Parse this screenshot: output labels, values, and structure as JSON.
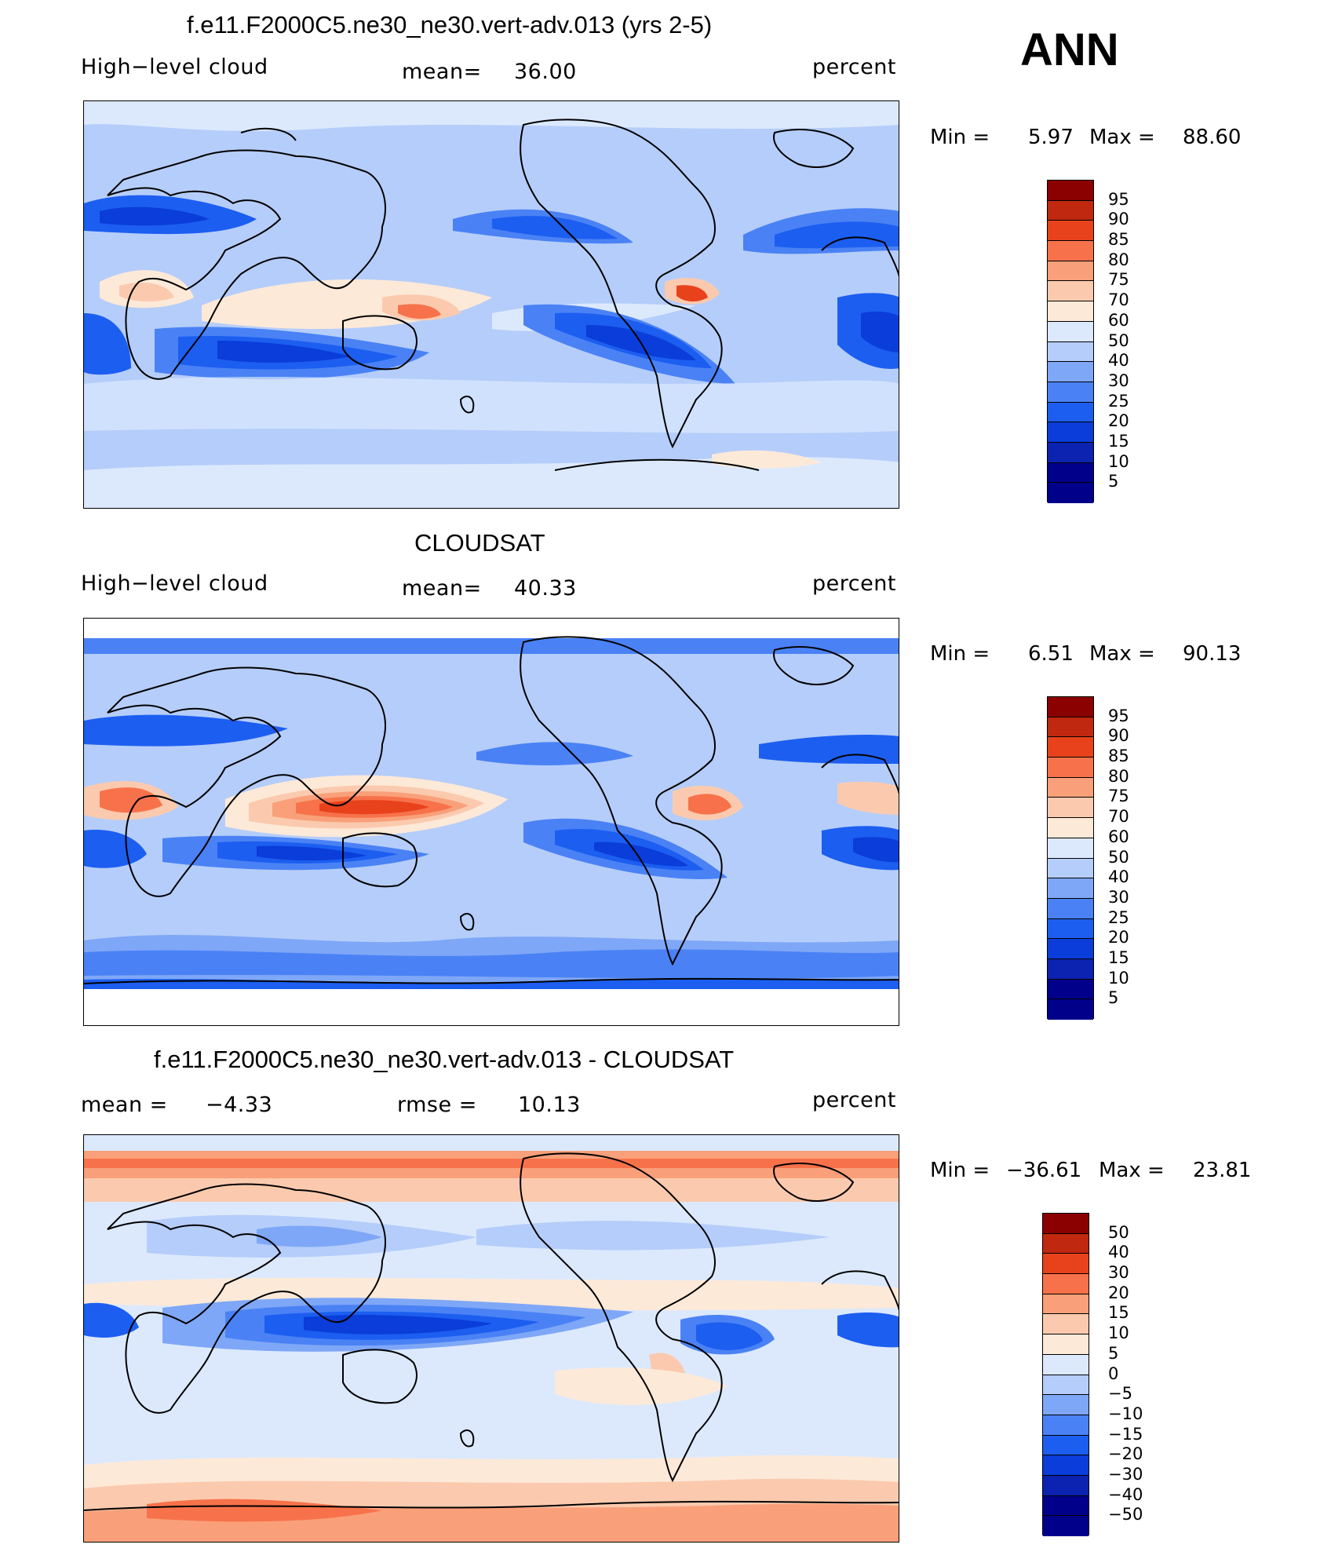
{
  "season": "ANN",
  "colors": {
    "abs": [
      "#00008b",
      "#0b23b0",
      "#0a3dd9",
      "#1c5ef0",
      "#4a82f5",
      "#7fa7f7",
      "#b5cdfa",
      "#dce9fd",
      "#fde9d8",
      "#fbcaae",
      "#f9a07a",
      "#f7724a",
      "#e8421c",
      "#c02810",
      "#8b0000"
    ],
    "diff": [
      "#00008b",
      "#0b23b0",
      "#0a3dd9",
      "#1c5ef0",
      "#4a82f5",
      "#7fa7f7",
      "#b5cdfa",
      "#dce9fd",
      "#fde9d8",
      "#fbcaae",
      "#f9a07a",
      "#f7724a",
      "#e8421c",
      "#c02810",
      "#8b0000"
    ]
  },
  "panels": [
    {
      "title": "f.e11.F2000C5.ne30_ne30.vert-adv.013 (yrs 2-5)",
      "left": "High−level cloud",
      "mid_label": "mean=",
      "mid_value": "36.00",
      "units": "percent",
      "min_label": "Min =",
      "min_value": "5.97",
      "max_label": "Max =",
      "max_value": "88.60",
      "levels": [
        "95",
        "90",
        "85",
        "80",
        "75",
        "70",
        "60",
        "50",
        "40",
        "30",
        "25",
        "20",
        "15",
        "10",
        "5"
      ]
    },
    {
      "title": "CLOUDSAT",
      "left": "High−level cloud",
      "mid_label": "mean=",
      "mid_value": "40.33",
      "units": "percent",
      "min_label": "Min =",
      "min_value": "6.51",
      "max_label": "Max =",
      "max_value": "90.13",
      "levels": [
        "95",
        "90",
        "85",
        "80",
        "75",
        "70",
        "60",
        "50",
        "40",
        "30",
        "25",
        "20",
        "15",
        "10",
        "5"
      ]
    },
    {
      "title": "f.e11.F2000C5.ne30_ne30.vert-adv.013 - CLOUDSAT",
      "left_label": "mean =",
      "left_value": "−4.33",
      "mid_label": "rmse =",
      "mid_value": "10.13",
      "units": "percent",
      "min_label": "Min =",
      "min_value": "−36.61",
      "max_label": "Max =",
      "max_value": "23.81",
      "levels": [
        "50",
        "40",
        "30",
        "20",
        "15",
        "10",
        "5",
        "0",
        "−5",
        "−10",
        "−15",
        "−20",
        "−30",
        "−40",
        "−50"
      ]
    }
  ]
}
